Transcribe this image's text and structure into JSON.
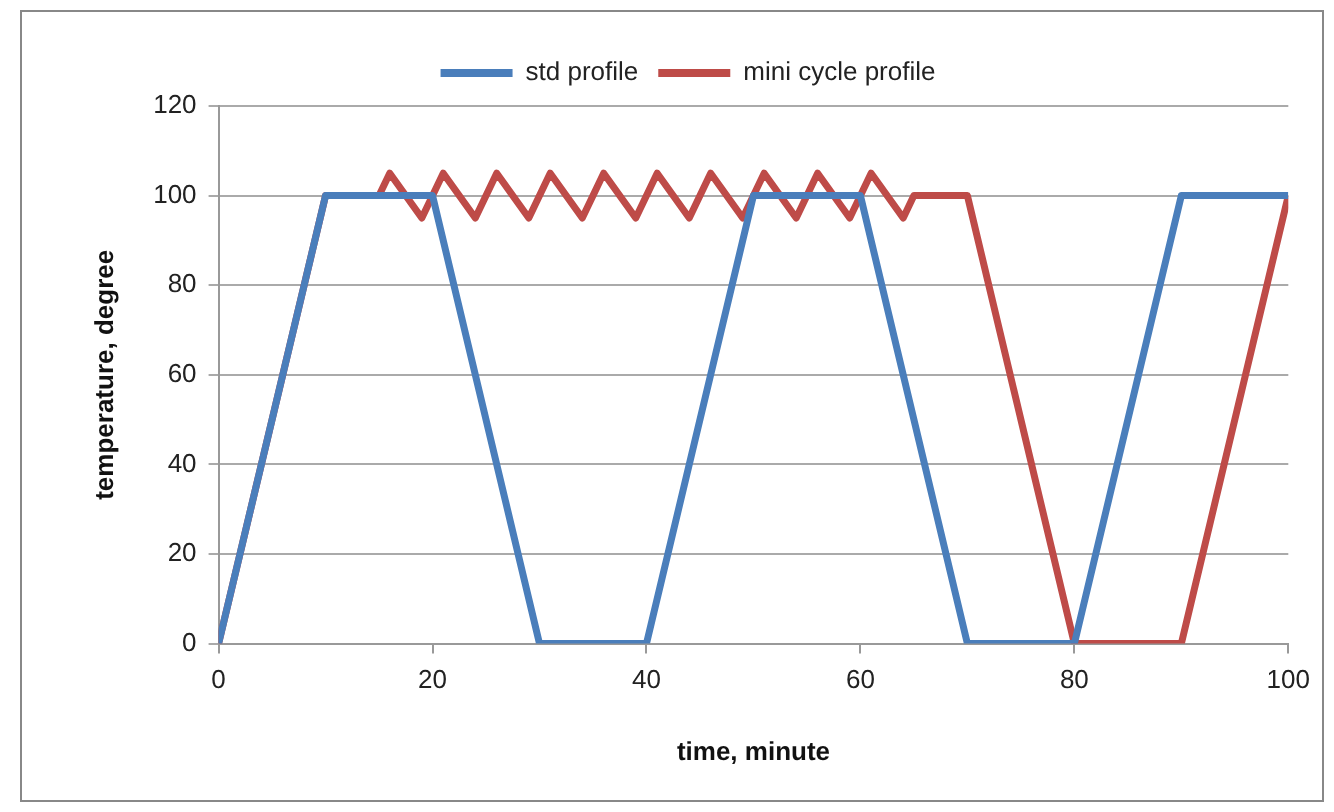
{
  "chart_data": {
    "type": "line",
    "xlabel": "time, minute",
    "ylabel": "temperature, degree",
    "xlim": [
      0,
      100
    ],
    "xticks": [
      0,
      20,
      40,
      60,
      80,
      100
    ],
    "ylim": [
      0,
      120
    ],
    "yticks": [
      0,
      20,
      40,
      60,
      80,
      100,
      120
    ],
    "grid": "y",
    "legend": "top",
    "marker": "none",
    "line_style": "solid",
    "series": [
      {
        "name": "std profile",
        "color": "#4a7ebb",
        "x": [
          0,
          10,
          20,
          30,
          40,
          50,
          60,
          70,
          80,
          90,
          100
        ],
        "values": [
          0,
          100,
          100,
          0,
          0,
          100,
          100,
          0,
          0,
          100,
          100
        ]
      },
      {
        "name": "mini cycle profile",
        "color": "#be4b48",
        "x": [
          0,
          10,
          15,
          16,
          19,
          21,
          24,
          26,
          29,
          31,
          34,
          36,
          39,
          41,
          44,
          46,
          49,
          51,
          54,
          56,
          59,
          61,
          64,
          65,
          70,
          80,
          90,
          100
        ],
        "values": [
          0,
          100,
          100,
          105,
          95,
          105,
          95,
          105,
          95,
          105,
          95,
          105,
          95,
          105,
          95,
          105,
          95,
          105,
          95,
          105,
          95,
          105,
          95,
          100,
          100,
          0,
          0,
          100
        ]
      }
    ]
  }
}
